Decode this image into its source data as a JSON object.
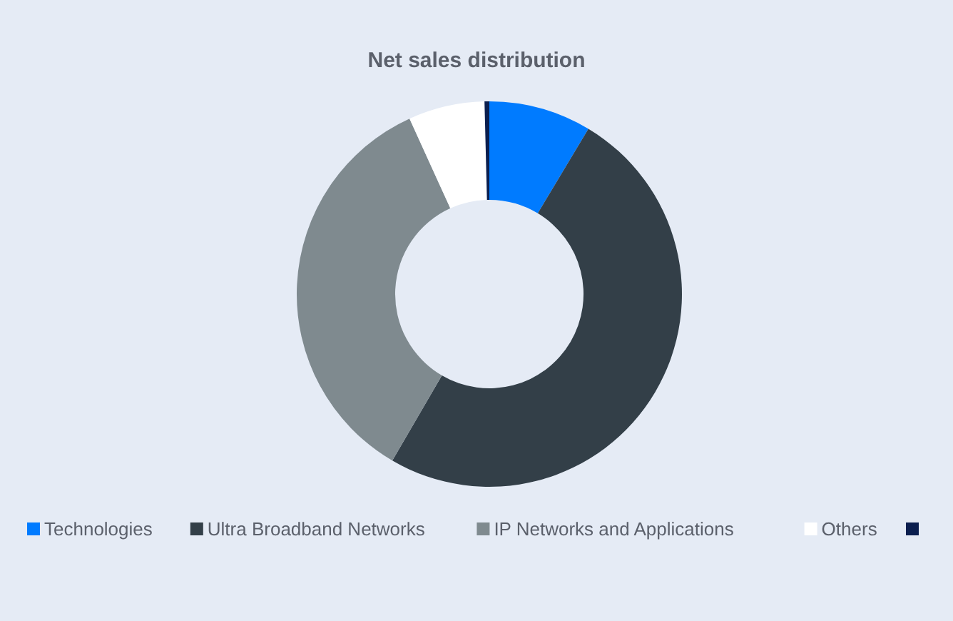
{
  "chart_data": {
    "type": "donut",
    "title": "Net sales distribution",
    "categories": [
      "Technologies",
      "Ultra Broadband Networks",
      "IP Networks and Applications",
      "Others",
      null
    ],
    "values": [
      8.6,
      49.8,
      34.8,
      6.4,
      0.4
    ],
    "colors": [
      "#007bff",
      "#333f48",
      "#7f8a8f",
      "#ffffff",
      "#0b1f4f"
    ],
    "legend": "bottom"
  }
}
